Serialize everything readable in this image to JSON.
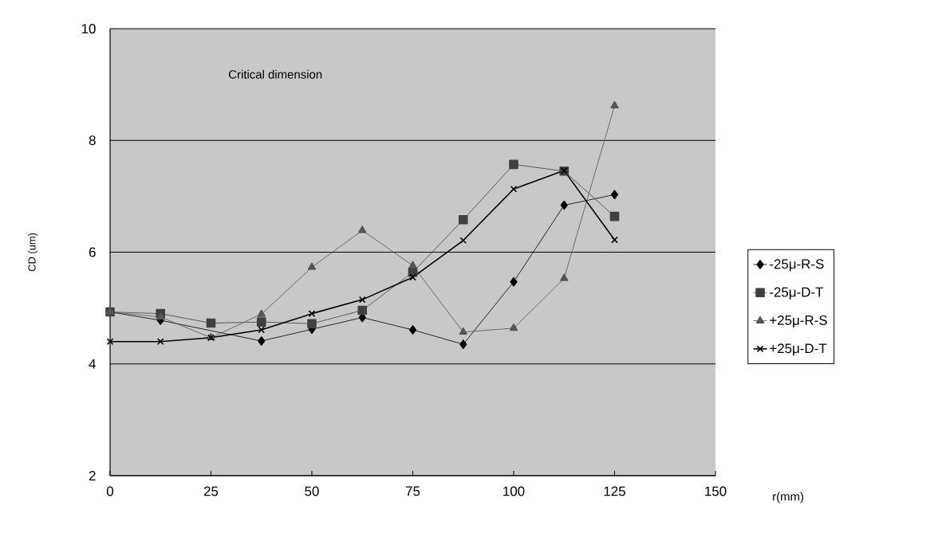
{
  "chart_data": {
    "type": "line",
    "xlabel": "r(mm)",
    "ylabel": "CD (um)",
    "annotations": [
      "Critical dimension"
    ],
    "x": [
      0,
      12.5,
      25,
      37.5,
      50,
      62.5,
      75,
      87.5,
      100,
      112.5,
      125
    ],
    "series": [
      {
        "name": "-25μ-R-S",
        "color": "#000000",
        "marker": "diamond",
        "values": [
          4.93,
          4.78,
          null,
          4.41,
          4.62,
          4.83,
          4.61,
          4.35,
          5.47,
          6.84,
          7.03
        ]
      },
      {
        "name": "-25μ-D-T",
        "color": "#404040",
        "marker": "square",
        "values": [
          4.93,
          4.9,
          4.73,
          4.75,
          4.72,
          4.96,
          5.64,
          6.58,
          7.57,
          7.45,
          6.64
        ]
      },
      {
        "name": "+25μ-R-S",
        "color": "#555555",
        "marker": "triangle",
        "values": [
          4.93,
          4.84,
          4.47,
          4.89,
          5.73,
          6.39,
          5.76,
          4.57,
          4.64,
          5.53,
          8.62
        ]
      },
      {
        "name": "+25μ-D-T",
        "color": "#000000",
        "marker": "cross",
        "values": [
          4.4,
          4.4,
          4.47,
          4.61,
          4.9,
          5.15,
          5.55,
          6.21,
          7.13,
          7.46,
          6.22
        ]
      }
    ],
    "xlim": [
      0,
      150
    ],
    "ylim": [
      2,
      10
    ],
    "xticks": [
      0,
      25,
      50,
      75,
      100,
      125,
      150
    ],
    "yticks": [
      2,
      4,
      6,
      8,
      10
    ],
    "grid": "y",
    "legend": "right"
  }
}
